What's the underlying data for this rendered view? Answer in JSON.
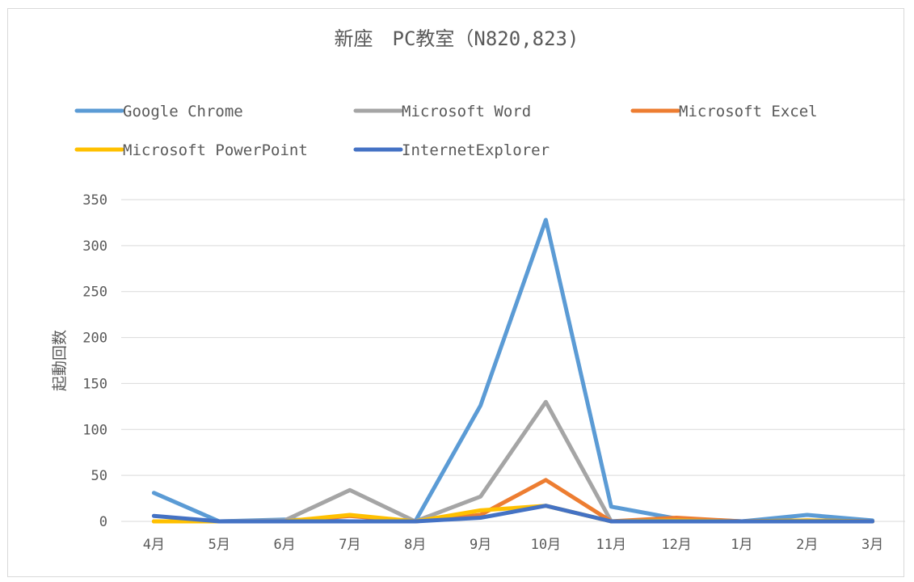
{
  "chart_data": {
    "type": "line",
    "title": "新座　PC教室（N820,823)",
    "xlabel": "",
    "ylabel": "起動回数",
    "ylim": [
      0,
      350
    ],
    "yticks": [
      "0",
      "50",
      "100",
      "150",
      "200",
      "250",
      "300",
      "350"
    ],
    "grid": true,
    "legend_position": "top",
    "categories": [
      "4月",
      "5月",
      "6月",
      "7月",
      "8月",
      "9月",
      "10月",
      "11月",
      "12月",
      "1月",
      "2月",
      "3月"
    ],
    "series": [
      {
        "name": "Google Chrome",
        "color": "#5b9bd5",
        "values": [
          31,
          0,
          2,
          0,
          0,
          126,
          328,
          16,
          3,
          0,
          7,
          1
        ]
      },
      {
        "name": "Microsoft Word",
        "color": "#a5a5a5",
        "values": [
          0,
          0,
          1,
          34,
          0,
          27,
          130,
          0,
          1,
          0,
          1,
          0
        ]
      },
      {
        "name": "Microsoft Excel",
        "color": "#ed7d31",
        "values": [
          0,
          0,
          0,
          6,
          0,
          7,
          45,
          0,
          4,
          0,
          1,
          0
        ]
      },
      {
        "name": "Microsoft PowerPoint",
        "color": "#ffc000",
        "values": [
          0,
          0,
          0,
          7,
          0,
          12,
          17,
          0,
          1,
          0,
          1,
          0
        ]
      },
      {
        "name": "InternetExplorer",
        "color": "#4472c4",
        "values": [
          6,
          0,
          0,
          0,
          0,
          4,
          17,
          0,
          0,
          0,
          0,
          0
        ]
      }
    ]
  }
}
